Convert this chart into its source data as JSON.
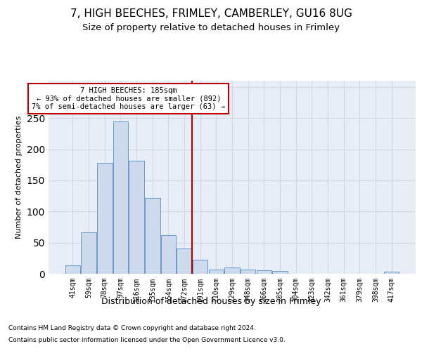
{
  "title": "7, HIGH BEECHES, FRIMLEY, CAMBERLEY, GU16 8UG",
  "subtitle": "Size of property relative to detached houses in Frimley",
  "xlabel": "Distribution of detached houses by size in Frimley",
  "ylabel": "Number of detached properties",
  "footer_line1": "Contains HM Land Registry data © Crown copyright and database right 2024.",
  "footer_line2": "Contains public sector information licensed under the Open Government Licence v3.0.",
  "categories": [
    "41sqm",
    "59sqm",
    "78sqm",
    "97sqm",
    "116sqm",
    "135sqm",
    "154sqm",
    "172sqm",
    "191sqm",
    "210sqm",
    "229sqm",
    "248sqm",
    "266sqm",
    "285sqm",
    "304sqm",
    "323sqm",
    "342sqm",
    "361sqm",
    "379sqm",
    "398sqm",
    "417sqm"
  ],
  "values": [
    13,
    67,
    178,
    245,
    181,
    122,
    62,
    41,
    22,
    7,
    10,
    7,
    6,
    5,
    0,
    0,
    0,
    0,
    0,
    0,
    3
  ],
  "bar_color": "#ccdaeb",
  "bar_edge_color": "#6699cc",
  "grid_color": "#d0d8e4",
  "vline_x_index": 8,
  "vline_color": "#aa0000",
  "annotation_line1": "7 HIGH BEECHES: 185sqm",
  "annotation_line2": "← 93% of detached houses are smaller (892)",
  "annotation_line3": "7% of semi-detached houses are larger (63) →",
  "annotation_box_color": "#bb0000",
  "ylim": [
    0,
    310
  ],
  "yticks": [
    0,
    50,
    100,
    150,
    200,
    250,
    300
  ],
  "background_color": "#e8eef5",
  "fig_background": "#ffffff",
  "title_fontsize": 11,
  "subtitle_fontsize": 9.5,
  "ylabel_fontsize": 8,
  "xlabel_fontsize": 9,
  "tick_fontsize": 7,
  "footer_fontsize": 6.5,
  "annotation_fontsize": 7.5
}
